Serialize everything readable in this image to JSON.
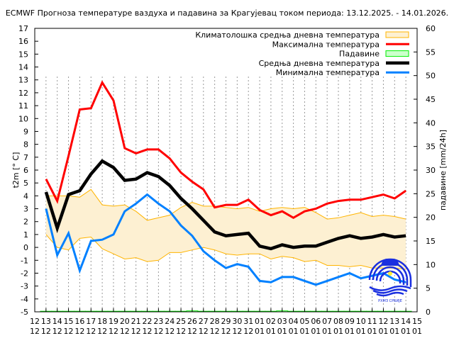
{
  "chart_data": {
    "type": "line",
    "title": "ECMWF Прогноза температуре ваздуха и падавина за Крагујевац током периода: 13.12.2025. - 14.01.2026.",
    "ylabel": "t2m [° C]",
    "y2label": "падавине [mm/24h]",
    "ylim": [
      -5,
      17
    ],
    "y2lim": [
      0,
      60
    ],
    "yticks": [
      -5,
      -4,
      -3,
      -2,
      -1,
      0,
      1,
      2,
      3,
      4,
      5,
      6,
      7,
      8,
      9,
      10,
      11,
      12,
      13,
      14,
      15,
      16,
      17
    ],
    "y2ticks": [
      0,
      5,
      10,
      15,
      20,
      25,
      30,
      35,
      40,
      45,
      50,
      55,
      60
    ],
    "xticks": [
      [
        "12",
        "12"
      ],
      [
        "13",
        "12"
      ],
      [
        "14",
        "12"
      ],
      [
        "15",
        "12"
      ],
      [
        "16",
        "12"
      ],
      [
        "17",
        "12"
      ],
      [
        "18",
        "12"
      ],
      [
        "19",
        "12"
      ],
      [
        "20",
        "12"
      ],
      [
        "21",
        "12"
      ],
      [
        "22",
        "12"
      ],
      [
        "23",
        "12"
      ],
      [
        "24",
        "12"
      ],
      [
        "25",
        "12"
      ],
      [
        "26",
        "12"
      ],
      [
        "27",
        "12"
      ],
      [
        "28",
        "12"
      ],
      [
        "29",
        "12"
      ],
      [
        "30",
        "12"
      ],
      [
        "31",
        "12"
      ],
      [
        "01",
        "01"
      ],
      [
        "02",
        "01"
      ],
      [
        "03",
        "01"
      ],
      [
        "04",
        "01"
      ],
      [
        "05",
        "01"
      ],
      [
        "06",
        "01"
      ],
      [
        "07",
        "01"
      ],
      [
        "08",
        "01"
      ],
      [
        "09",
        "01"
      ],
      [
        "10",
        "01"
      ],
      [
        "11",
        "01"
      ],
      [
        "12",
        "01"
      ],
      [
        "13",
        "01"
      ],
      [
        "14",
        "01"
      ],
      [
        "15",
        "01"
      ]
    ],
    "grid": "vertical dashed",
    "legend_placement": "top-right",
    "colors": {
      "clim_fill": "#fdf0d2",
      "clim_edge": "#ffb400",
      "max": "#ff0000",
      "precip": "#00ee00",
      "precip_fill": "#ccffcc",
      "mean": "#000000",
      "min": "#0080ff"
    },
    "legend": [
      {
        "key": "clim",
        "label": "Климатолошка средња дневна температура"
      },
      {
        "key": "max",
        "label": "Максимална температура"
      },
      {
        "key": "precip",
        "label": "Падавине"
      },
      {
        "key": "mean",
        "label": "Средња дневна температура"
      },
      {
        "key": "min",
        "label": "Минимална температура"
      }
    ],
    "x_start_index": 1,
    "series": [
      {
        "name": "Максимална температура",
        "key": "max",
        "values": [
          5.3,
          3.6,
          7.1,
          10.7,
          10.8,
          12.8,
          11.4,
          7.7,
          7.3,
          7.6,
          7.6,
          6.9,
          5.8,
          5.1,
          4.5,
          3.1,
          3.3,
          3.3,
          3.7,
          2.9,
          2.5,
          2.8,
          2.3,
          2.8,
          3.0,
          3.4,
          3.6,
          3.7,
          3.7,
          3.9,
          4.1,
          3.8,
          4.4
        ]
      },
      {
        "name": "Средња дневна температура",
        "key": "mean",
        "values": [
          4.3,
          1.5,
          4.1,
          4.4,
          5.7,
          6.7,
          6.2,
          5.2,
          5.3,
          5.8,
          5.5,
          4.8,
          3.8,
          3.0,
          2.1,
          1.2,
          0.9,
          1.0,
          1.1,
          0.1,
          -0.1,
          0.2,
          0.0,
          0.1,
          0.1,
          0.4,
          0.7,
          0.9,
          0.7,
          0.8,
          1.0,
          0.8,
          0.9
        ]
      },
      {
        "name": "Минимална температура",
        "key": "min",
        "values": [
          3.0,
          -0.6,
          1.1,
          -1.8,
          0.5,
          0.6,
          1.0,
          2.8,
          3.4,
          4.1,
          3.4,
          2.8,
          1.7,
          0.9,
          -0.3,
          -1.0,
          -1.6,
          -1.3,
          -1.5,
          -2.6,
          -2.7,
          -2.3,
          -2.3,
          -2.6,
          -2.9,
          -2.6,
          -2.3,
          -2.0,
          -2.4,
          -2.2,
          -2.0,
          -2.5,
          -2.7
        ]
      },
      {
        "name": "Климатолошка средња дневна температура (горња)",
        "key": "clim_upper",
        "values": [
          4.0,
          4.0,
          4.0,
          3.9,
          4.5,
          3.3,
          3.2,
          3.3,
          2.8,
          2.1,
          2.3,
          2.5,
          3.1,
          3.5,
          3.2,
          3.2,
          3.1,
          3.0,
          3.1,
          2.8,
          3.0,
          3.1,
          3.0,
          3.1,
          2.7,
          2.2,
          2.3,
          2.5,
          2.7,
          2.4,
          2.5,
          2.4,
          2.2
        ]
      },
      {
        "name": "Климатолошка средња дневна температура (доња)",
        "key": "clim_lower",
        "values": [
          1.0,
          0.0,
          -0.2,
          0.7,
          0.8,
          -0.1,
          -0.5,
          -0.9,
          -0.8,
          -1.1,
          -1.0,
          -0.4,
          -0.4,
          -0.2,
          0.0,
          -0.2,
          -0.5,
          -0.6,
          -0.5,
          -0.5,
          -0.9,
          -0.7,
          -0.8,
          -1.1,
          -1.0,
          -1.4,
          -1.4,
          -1.5,
          -1.4,
          -1.6,
          -1.6,
          -1.6,
          -1.7
        ]
      },
      {
        "name": "Падавине",
        "key": "precip",
        "axis": "right",
        "values": [
          0,
          0,
          0,
          0,
          0,
          0,
          0,
          0,
          0,
          0,
          0,
          0,
          0,
          0.2,
          0,
          0,
          0,
          0,
          0,
          0,
          0,
          0.2,
          0,
          0,
          0,
          0,
          0,
          0,
          0,
          0,
          0,
          0,
          0
        ]
      }
    ]
  },
  "logo": {
    "text": "РХМЗ СРБИЈЕ"
  }
}
